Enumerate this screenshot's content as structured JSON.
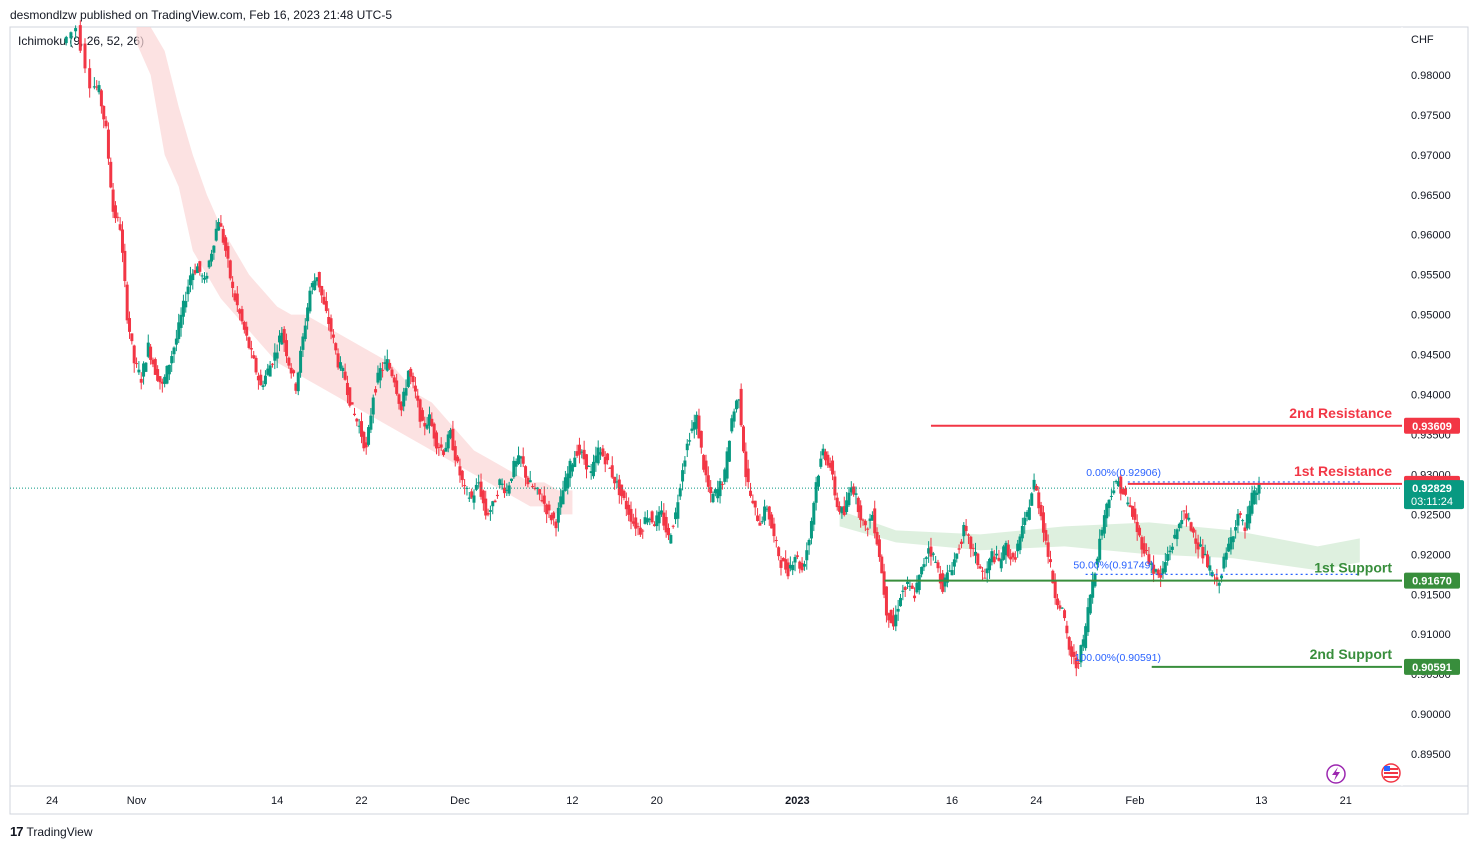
{
  "header": {
    "published": "desmondlzw published on TradingView.com, Feb 16, 2023 21:48 UTC-5",
    "indicator": "Ichimoku (9, 26, 52, 26)",
    "currency": "CHF",
    "logo_text": "TradingView"
  },
  "chart_data": {
    "type": "candlestick",
    "y_axis": {
      "unit": "CHF",
      "ylim": [
        0.891,
        0.986
      ],
      "ticks": [
        "0.98000",
        "0.97500",
        "0.97000",
        "0.96500",
        "0.96000",
        "0.95500",
        "0.95000",
        "0.94500",
        "0.94000",
        "0.93500",
        "0.93000",
        "0.92500",
        "0.92000",
        "0.91500",
        "0.91000",
        "0.90500",
        "0.90000",
        "0.89500"
      ],
      "tick_values": [
        0.98,
        0.975,
        0.97,
        0.965,
        0.96,
        0.955,
        0.95,
        0.945,
        0.94,
        0.935,
        0.93,
        0.925,
        0.92,
        0.915,
        0.91,
        0.905,
        0.9,
        0.895
      ]
    },
    "x_axis": {
      "ticks": [
        {
          "label": "24",
          "x": 0
        },
        {
          "label": "Nov",
          "x": 6
        },
        {
          "label": "14",
          "x": 16
        },
        {
          "label": "22",
          "x": 22
        },
        {
          "label": "Dec",
          "x": 29
        },
        {
          "label": "12",
          "x": 37
        },
        {
          "label": "20",
          "x": 43
        },
        {
          "label": "2023",
          "x": 53,
          "bold": true
        },
        {
          "label": "16",
          "x": 64
        },
        {
          "label": "24",
          "x": 70
        },
        {
          "label": "Feb",
          "x": 77
        },
        {
          "label": "13",
          "x": 86
        },
        {
          "label": "21",
          "x": 92
        }
      ],
      "x_range": [
        -3,
        96
      ]
    },
    "levels": [
      {
        "name": "2nd Resistance",
        "value": 0.93609,
        "tag": "0.93609",
        "color": "#f23645",
        "x_start": 62.5
      },
      {
        "name": "1st Resistance",
        "value": 0.92882,
        "tag": "0.92882",
        "color": "#f23645",
        "x_start": 76.5
      },
      {
        "name": "1st Support",
        "value": 0.9167,
        "tag": "0.91670",
        "color": "#388e3c",
        "x_start": 59.2
      },
      {
        "name": "2nd Support",
        "value": 0.90591,
        "tag": "0.90591",
        "color": "#388e3c",
        "x_start": 78.2
      }
    ],
    "current_price": {
      "value": 0.92829,
      "tag": "0.92829",
      "countdown": "03:11:24",
      "color": "#089981"
    },
    "fibonacci": [
      {
        "label": "0.00%(0.92906)",
        "value": 0.92906
      },
      {
        "label": "50.00%(0.91749)",
        "value": 0.91749
      },
      {
        "label": "100.00%(0.90591)",
        "value": 0.90591
      }
    ],
    "price_path": [
      [
        1,
        0.984
      ],
      [
        2,
        0.986
      ],
      [
        3,
        0.979
      ],
      [
        3.5,
        0.978
      ],
      [
        4,
        0.973
      ],
      [
        4.5,
        0.963
      ],
      [
        5,
        0.961
      ],
      [
        5.5,
        0.95
      ],
      [
        6,
        0.944
      ],
      [
        6.5,
        0.942
      ],
      [
        7,
        0.946
      ],
      [
        7.5,
        0.943
      ],
      [
        8,
        0.941
      ],
      [
        8.5,
        0.944
      ],
      [
        9,
        0.947
      ],
      [
        9.5,
        0.951
      ],
      [
        10,
        0.955
      ],
      [
        10.5,
        0.956
      ],
      [
        11,
        0.954
      ],
      [
        11.5,
        0.958
      ],
      [
        12,
        0.962
      ],
      [
        12.5,
        0.958
      ],
      [
        13,
        0.953
      ],
      [
        13.5,
        0.95
      ],
      [
        14,
        0.947
      ],
      [
        14.5,
        0.944
      ],
      [
        15,
        0.941
      ],
      [
        15.5,
        0.943
      ],
      [
        16,
        0.945
      ],
      [
        16.5,
        0.948
      ],
      [
        17,
        0.944
      ],
      [
        17.5,
        0.941
      ],
      [
        18,
        0.947
      ],
      [
        18.5,
        0.953
      ],
      [
        19,
        0.955
      ],
      [
        19.5,
        0.951
      ],
      [
        20,
        0.948
      ],
      [
        20.5,
        0.944
      ],
      [
        21,
        0.942
      ],
      [
        21.5,
        0.938
      ],
      [
        22,
        0.936
      ],
      [
        22.5,
        0.933
      ],
      [
        23,
        0.94
      ],
      [
        23.5,
        0.943
      ],
      [
        24,
        0.944
      ],
      [
        24.5,
        0.942
      ],
      [
        25,
        0.938
      ],
      [
        25.5,
        0.943
      ],
      [
        26,
        0.94
      ],
      [
        26.5,
        0.936
      ],
      [
        27,
        0.937
      ],
      [
        27.5,
        0.934
      ],
      [
        28,
        0.933
      ],
      [
        28.5,
        0.935
      ],
      [
        29,
        0.931
      ],
      [
        29.5,
        0.928
      ],
      [
        30,
        0.927
      ],
      [
        30.5,
        0.929
      ],
      [
        31,
        0.925
      ],
      [
        31.5,
        0.926
      ],
      [
        32,
        0.929
      ],
      [
        32.5,
        0.928
      ],
      [
        33,
        0.931
      ],
      [
        33.5,
        0.932
      ],
      [
        34,
        0.929
      ],
      [
        34.5,
        0.928
      ],
      [
        35,
        0.927
      ],
      [
        35.5,
        0.925
      ],
      [
        36,
        0.924
      ],
      [
        36.5,
        0.928
      ],
      [
        37,
        0.931
      ],
      [
        37.5,
        0.933
      ],
      [
        38,
        0.932
      ],
      [
        38.5,
        0.93
      ],
      [
        39,
        0.933
      ],
      [
        39.5,
        0.932
      ],
      [
        40,
        0.93
      ],
      [
        40.5,
        0.928
      ],
      [
        41,
        0.926
      ],
      [
        41.5,
        0.924
      ],
      [
        42,
        0.923
      ],
      [
        42.5,
        0.925
      ],
      [
        43,
        0.924
      ],
      [
        43.5,
        0.925
      ],
      [
        44,
        0.922
      ],
      [
        44.5,
        0.925
      ],
      [
        45,
        0.931
      ],
      [
        45.5,
        0.935
      ],
      [
        46,
        0.937
      ],
      [
        46.5,
        0.931
      ],
      [
        47,
        0.927
      ],
      [
        47.5,
        0.928
      ],
      [
        48,
        0.93
      ],
      [
        48.5,
        0.937
      ],
      [
        49,
        0.94
      ],
      [
        49.5,
        0.93
      ],
      [
        50,
        0.926
      ],
      [
        50.5,
        0.924
      ],
      [
        51,
        0.926
      ],
      [
        51.5,
        0.922
      ],
      [
        52,
        0.919
      ],
      [
        52.5,
        0.918
      ],
      [
        53,
        0.92
      ],
      [
        53.5,
        0.918
      ],
      [
        54,
        0.922
      ],
      [
        54.5,
        0.929
      ],
      [
        55,
        0.933
      ],
      [
        55.5,
        0.931
      ],
      [
        56,
        0.926
      ],
      [
        56.5,
        0.925
      ],
      [
        57,
        0.929
      ],
      [
        57.5,
        0.926
      ],
      [
        58,
        0.923
      ],
      [
        58.5,
        0.925
      ],
      [
        59,
        0.92
      ],
      [
        59.5,
        0.913
      ],
      [
        60,
        0.911
      ],
      [
        60.5,
        0.915
      ],
      [
        61,
        0.916
      ],
      [
        61.5,
        0.915
      ],
      [
        62,
        0.918
      ],
      [
        62.5,
        0.921
      ],
      [
        63,
        0.919
      ],
      [
        63.5,
        0.916
      ],
      [
        64,
        0.918
      ],
      [
        64.5,
        0.92
      ],
      [
        65,
        0.923
      ],
      [
        65.5,
        0.921
      ],
      [
        66,
        0.919
      ],
      [
        66.5,
        0.917
      ],
      [
        67,
        0.92
      ],
      [
        67.5,
        0.919
      ],
      [
        68,
        0.921
      ],
      [
        68.5,
        0.919
      ],
      [
        69,
        0.922
      ],
      [
        69.5,
        0.925
      ],
      [
        70,
        0.929
      ],
      [
        70.5,
        0.925
      ],
      [
        71,
        0.92
      ],
      [
        71.5,
        0.915
      ],
      [
        72,
        0.913
      ],
      [
        72.5,
        0.908
      ],
      [
        73,
        0.906
      ],
      [
        73.5,
        0.909
      ],
      [
        74,
        0.915
      ],
      [
        74.5,
        0.92
      ],
      [
        75,
        0.925
      ],
      [
        75.5,
        0.928
      ],
      [
        76,
        0.929
      ],
      [
        76.5,
        0.927
      ],
      [
        77,
        0.925
      ],
      [
        77.5,
        0.922
      ],
      [
        78,
        0.92
      ],
      [
        78.5,
        0.918
      ],
      [
        79,
        0.917
      ],
      [
        79.5,
        0.92
      ],
      [
        80,
        0.922
      ],
      [
        80.5,
        0.925
      ],
      [
        81,
        0.924
      ],
      [
        81.5,
        0.922
      ],
      [
        82,
        0.92
      ],
      [
        82.5,
        0.918
      ],
      [
        83,
        0.916
      ],
      [
        83.5,
        0.919
      ],
      [
        84,
        0.922
      ],
      [
        84.5,
        0.925
      ],
      [
        85,
        0.923
      ],
      [
        85.5,
        0.927
      ],
      [
        86,
        0.9283
      ]
    ],
    "cloud": [
      [
        6,
        0.986,
        0.984
      ],
      [
        7,
        0.986,
        0.98
      ],
      [
        8,
        0.983,
        0.97
      ],
      [
        9,
        0.976,
        0.966
      ],
      [
        10,
        0.97,
        0.958
      ],
      [
        11,
        0.965,
        0.955
      ],
      [
        12,
        0.961,
        0.952
      ],
      [
        13,
        0.958,
        0.95
      ],
      [
        14,
        0.955,
        0.948
      ],
      [
        15,
        0.953,
        0.946
      ],
      [
        16,
        0.951,
        0.944
      ],
      [
        17,
        0.95,
        0.943
      ],
      [
        18,
        0.95,
        0.942
      ],
      [
        19,
        0.949,
        0.941
      ],
      [
        20,
        0.948,
        0.94
      ],
      [
        21,
        0.947,
        0.939
      ],
      [
        22,
        0.946,
        0.938
      ],
      [
        23,
        0.945,
        0.937
      ],
      [
        24,
        0.944,
        0.936
      ],
      [
        25,
        0.942,
        0.935
      ],
      [
        26,
        0.94,
        0.934
      ],
      [
        27,
        0.939,
        0.933
      ],
      [
        28,
        0.937,
        0.932
      ],
      [
        29,
        0.935,
        0.931
      ],
      [
        30,
        0.933,
        0.93
      ],
      [
        31,
        0.932,
        0.929
      ],
      [
        32,
        0.931,
        0.928
      ],
      [
        33,
        0.93,
        0.927
      ],
      [
        34,
        0.929,
        0.926
      ],
      [
        35,
        0.929,
        0.926
      ],
      [
        36,
        0.928,
        0.925
      ],
      [
        37,
        0.928,
        0.925
      ]
    ],
    "cloud_positions_start": 16
  },
  "icons": {
    "flash_icon": "⚡",
    "flag_icon": "flag-us"
  }
}
